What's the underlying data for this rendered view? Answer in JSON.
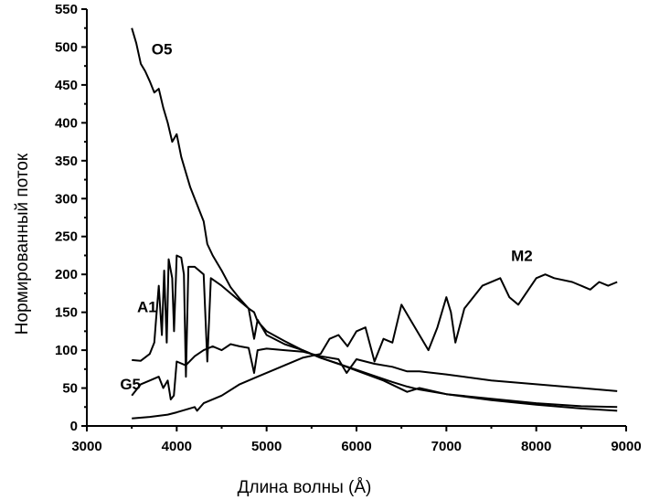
{
  "chart_data": {
    "type": "line",
    "xlabel": "Длина волны (Å)",
    "ylabel": "Нормированный поток",
    "xlim": [
      3000,
      9000
    ],
    "ylim": [
      0,
      550
    ],
    "x_ticks": [
      3000,
      4000,
      5000,
      6000,
      7000,
      8000,
      9000
    ],
    "y_ticks": [
      0,
      50,
      100,
      150,
      200,
      250,
      300,
      350,
      400,
      450,
      500,
      550
    ],
    "grid": false,
    "series": [
      {
        "name": "O5",
        "x": [
          3500,
          3550,
          3600,
          3650,
          3700,
          3750,
          3800,
          3850,
          3900,
          3950,
          4000,
          4050,
          4100,
          4150,
          4200,
          4300,
          4340,
          4400,
          4500,
          4600,
          4700,
          4800,
          4861,
          4900,
          5000,
          5200,
          5400,
          5600,
          5800,
          6000,
          6200,
          6400,
          6563,
          6700,
          7000,
          7500,
          8000,
          8500,
          8900
        ],
        "y": [
          525,
          505,
          478,
          468,
          455,
          440,
          445,
          420,
          400,
          375,
          385,
          355,
          335,
          315,
          300,
          270,
          240,
          225,
          205,
          183,
          168,
          155,
          150,
          138,
          125,
          112,
          100,
          90,
          82,
          74,
          66,
          58,
          52,
          48,
          42,
          34,
          28,
          23,
          20
        ]
      },
      {
        "name": "A1",
        "x": [
          3500,
          3600,
          3700,
          3750,
          3770,
          3800,
          3835,
          3860,
          3889,
          3910,
          3950,
          3970,
          4000,
          4050,
          4080,
          4102,
          4130,
          4200,
          4300,
          4340,
          4380,
          4500,
          4700,
          4800,
          4861,
          4900,
          5000,
          5200,
          5400,
          5600,
          5800,
          6000,
          6300,
          6563,
          6700,
          7000,
          7500,
          8000,
          8500,
          8900
        ],
        "y": [
          87,
          86,
          95,
          110,
          140,
          185,
          120,
          205,
          110,
          220,
          195,
          125,
          225,
          222,
          200,
          65,
          210,
          210,
          200,
          85,
          195,
          185,
          165,
          155,
          115,
          140,
          120,
          108,
          100,
          90,
          82,
          73,
          60,
          45,
          50,
          42,
          36,
          30,
          26,
          25
        ]
      },
      {
        "name": "G5",
        "x": [
          3500,
          3600,
          3700,
          3800,
          3850,
          3900,
          3934,
          3968,
          4000,
          4100,
          4200,
          4300,
          4400,
          4500,
          4600,
          4700,
          4800,
          4861,
          4900,
          5000,
          5200,
          5400,
          5600,
          5800,
          5890,
          6000,
          6200,
          6400,
          6563,
          6700,
          7000,
          7500,
          8000,
          8500,
          8900
        ],
        "y": [
          40,
          55,
          60,
          65,
          50,
          60,
          35,
          40,
          85,
          80,
          92,
          100,
          105,
          100,
          108,
          105,
          103,
          70,
          100,
          102,
          100,
          98,
          92,
          88,
          70,
          88,
          82,
          78,
          72,
          72,
          68,
          60,
          55,
          50,
          46
        ]
      },
      {
        "name": "M2",
        "x": [
          3500,
          3700,
          3900,
          4000,
          4200,
          4226,
          4300,
          4500,
          4700,
          4900,
          5100,
          5200,
          5400,
          5600,
          5700,
          5800,
          5900,
          6000,
          6100,
          6200,
          6300,
          6400,
          6500,
          6600,
          6800,
          6900,
          7000,
          7050,
          7100,
          7200,
          7400,
          7600,
          7700,
          7800,
          8000,
          8100,
          8200,
          8400,
          8500,
          8600,
          8700,
          8800,
          8900
        ],
        "y": [
          10,
          12,
          15,
          18,
          25,
          20,
          30,
          40,
          55,
          65,
          75,
          80,
          90,
          95,
          115,
          120,
          105,
          125,
          130,
          85,
          115,
          110,
          160,
          140,
          100,
          130,
          170,
          150,
          110,
          155,
          185,
          195,
          170,
          160,
          195,
          200,
          195,
          190,
          185,
          180,
          190,
          185,
          190
        ]
      }
    ]
  }
}
